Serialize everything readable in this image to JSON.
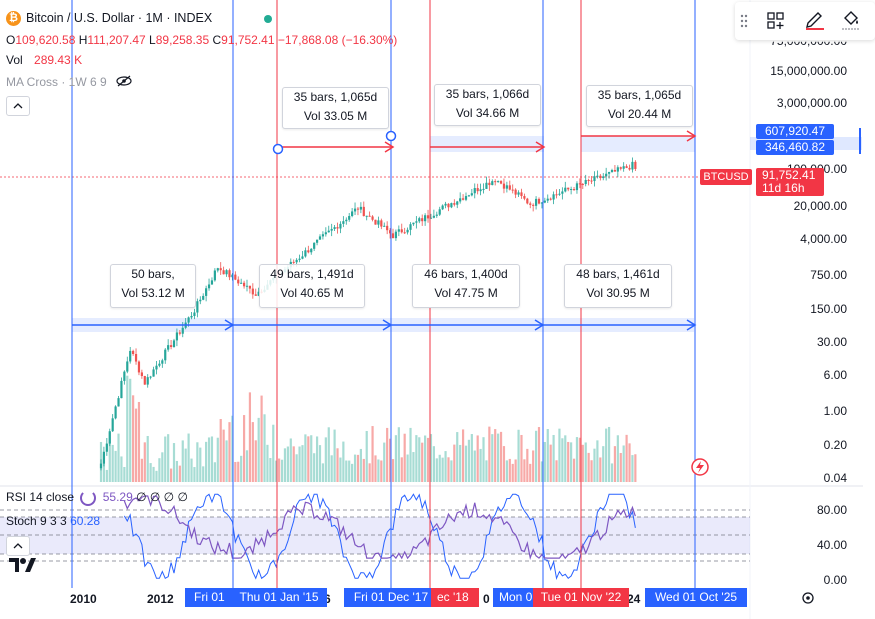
{
  "header": {
    "title": "Bitcoin / U.S. Dollar · 1M · INDEX",
    "o_label": "O",
    "o_value": "109,620.58",
    "h_label": "H",
    "h_value": "111,207.47",
    "l_label": "L",
    "l_value": "89,258.35",
    "c_label": "C",
    "c_value": "91,752.41",
    "change": "−17,868.08 (−16.30%)",
    "vol_label": "Vol",
    "vol_value": "289.43 K",
    "ma_label": "MA Cross · 1W 6 9"
  },
  "price_axis": {
    "labels": [
      "15,000,000.00",
      "3,000,000.00",
      "100,000.00",
      "20,000.00",
      "4,000.00",
      "750.00",
      "150.00",
      "30.00",
      "6.00",
      "1.00",
      "0.20",
      "0.04"
    ],
    "top_partial": "75,000,000.00",
    "flag_high": "607,920.47",
    "flag_low": "346,460.82",
    "symbol_tag": "BTCUSD",
    "last_price": "91,752.41",
    "countdown": "11d 16h"
  },
  "measurements": {
    "top": [
      {
        "bars": "35 bars, 1,065d",
        "vol": "Vol 33.05 M"
      },
      {
        "bars": "35 bars, 1,066d",
        "vol": "Vol 34.66 M"
      },
      {
        "bars": "35 bars, 1,065d",
        "vol": "Vol 20.44 M"
      }
    ],
    "bottom": [
      {
        "bars": "50 bars,",
        "vol": "Vol 53.12 M"
      },
      {
        "bars": "49 bars, 1,491d",
        "vol": "Vol 40.65 M"
      },
      {
        "bars": "46 bars, 1,400d",
        "vol": "Vol 47.75 M"
      },
      {
        "bars": "48 bars, 1,461d",
        "vol": "Vol 30.95 M"
      }
    ]
  },
  "rsi": {
    "label": "RSI 14 close",
    "value": "55.29",
    "extra": "∅ ∅ ∅ ∅",
    "stoch_label": "Stoch 9 3 3",
    "stoch_value": "60.28",
    "axis": [
      "80.00",
      "40.00",
      "0.00"
    ]
  },
  "time_axis": {
    "years": [
      "2010",
      "2012",
      "6",
      "0",
      "24"
    ],
    "chips": [
      {
        "text": "Fri 01",
        "color": "#2962ff"
      },
      {
        "text": "Thu 01 Jan '15",
        "color": "#2962ff"
      },
      {
        "text": "Fri 01 Dec '17",
        "color": "#2962ff"
      },
      {
        "text": "ec '18",
        "color": "#f23645"
      },
      {
        "text": "Mon 0",
        "color": "#2962ff"
      },
      {
        "text": "Tue 01 Nov '22",
        "color": "#f23645"
      },
      {
        "text": "Wed 01 Oct '25",
        "color": "#2962ff"
      }
    ]
  },
  "toolbar": {
    "icons": [
      "grid-plus-icon",
      "pencil-icon",
      "paint-bucket-icon",
      "drag-handle-icon"
    ]
  },
  "logo": "TV",
  "colors": {
    "up": "#26a69a",
    "down": "#ef5350",
    "blue": "#2962ff",
    "red": "#f23645",
    "vol_up": "#a7dcd4",
    "vol_down": "#f7a9a7",
    "rsi": "#7e57c2",
    "stoch": "#2962ff"
  },
  "chart_data": {
    "type": "candlestick",
    "title": "Bitcoin / U.S. Dollar · 1M · INDEX",
    "y_scale": "log",
    "y_ticks": [
      15000000,
      3000000,
      100000,
      20000,
      4000,
      750,
      150,
      30,
      6,
      1,
      0.2,
      0.04
    ],
    "last_close": 91752.41,
    "anchor_prices": [
      {
        "date": "2010-08",
        "price": 0.06
      },
      {
        "date": "2011-06",
        "price": 15
      },
      {
        "date": "2011-11",
        "price": 3
      },
      {
        "date": "2013-04",
        "price": 100
      },
      {
        "date": "2013-12",
        "price": 800
      },
      {
        "date": "2015-01",
        "price": 220
      },
      {
        "date": "2017-12",
        "price": 14000
      },
      {
        "date": "2018-12",
        "price": 3700
      },
      {
        "date": "2021-11",
        "price": 57000
      },
      {
        "date": "2022-11",
        "price": 17000
      },
      {
        "date": "2025-10",
        "price": 109600
      },
      {
        "date": "2025-11",
        "price": 91752
      }
    ]
  }
}
